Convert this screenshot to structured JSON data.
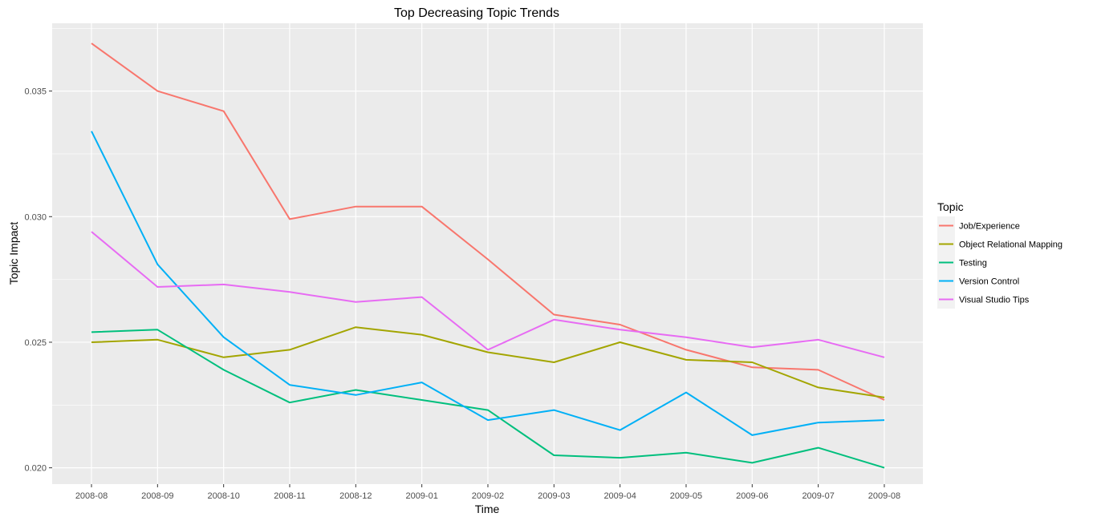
{
  "chart_data": {
    "type": "line",
    "title": "Top Decreasing Topic Trends",
    "xlabel": "Time",
    "ylabel": "Topic Impact",
    "x": [
      "2008-08",
      "2008-09",
      "2008-10",
      "2008-11",
      "2008-12",
      "2009-01",
      "2009-02",
      "2009-03",
      "2009-04",
      "2009-05",
      "2009-06",
      "2009-07",
      "2009-08"
    ],
    "yticks": [
      "0.020",
      "0.025",
      "0.030",
      "0.035"
    ],
    "ylim": [
      0.01935,
      0.0377
    ],
    "grid": true,
    "legend": {
      "title": "Topic",
      "placement": "right"
    },
    "series": [
      {
        "name": "Job/Experience",
        "color": "#F8766D",
        "values": [
          0.0369,
          0.035,
          0.0342,
          0.0299,
          0.0304,
          0.0304,
          0.0283,
          0.0261,
          0.0257,
          0.0247,
          0.024,
          0.0239,
          0.0227
        ]
      },
      {
        "name": "Object Relational Mapping",
        "color": "#A3A500",
        "values": [
          0.025,
          0.0251,
          0.0244,
          0.0247,
          0.0256,
          0.0253,
          0.0246,
          0.0242,
          0.025,
          0.0243,
          0.0242,
          0.0232,
          0.0228
        ]
      },
      {
        "name": "Testing",
        "color": "#00BF7D",
        "values": [
          0.0254,
          0.0255,
          0.0239,
          0.0226,
          0.0231,
          0.0227,
          0.0223,
          0.0205,
          0.0204,
          0.0206,
          0.0202,
          0.0208,
          0.02
        ]
      },
      {
        "name": "Version Control",
        "color": "#00B0F6",
        "values": [
          0.0334,
          0.0281,
          0.0252,
          0.0233,
          0.0229,
          0.0234,
          0.0219,
          0.0223,
          0.0215,
          0.023,
          0.0213,
          0.0218,
          0.0219
        ]
      },
      {
        "name": "Visual Studio Tips",
        "color": "#E76BF3",
        "values": [
          0.0294,
          0.0272,
          0.0273,
          0.027,
          0.0266,
          0.0268,
          0.0247,
          0.0259,
          0.0255,
          0.0252,
          0.0248,
          0.0251,
          0.0244
        ]
      }
    ]
  }
}
